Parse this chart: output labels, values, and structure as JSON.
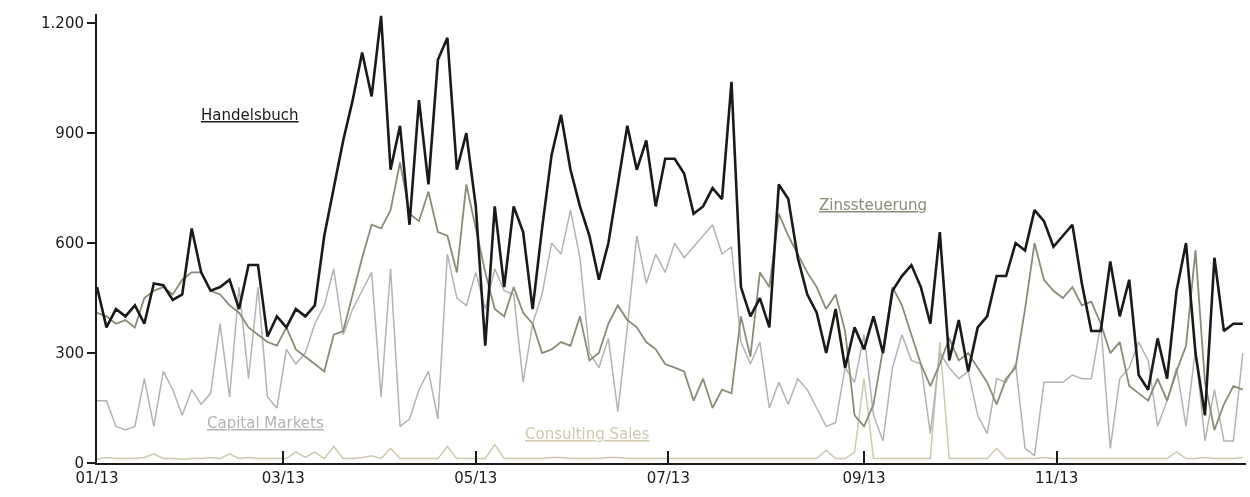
{
  "chart_data": {
    "type": "line",
    "x": [
      "2013-01-01",
      "2013-01-04",
      "2013-01-07",
      "2013-01-10",
      "2013-01-13",
      "2013-01-16",
      "2013-01-19",
      "2013-01-22",
      "2013-01-25",
      "2013-01-28",
      "2013-01-31",
      "2013-02-03",
      "2013-02-06",
      "2013-02-09",
      "2013-02-12",
      "2013-02-15",
      "2013-02-18",
      "2013-02-21",
      "2013-02-24",
      "2013-02-27",
      "2013-03-02",
      "2013-03-05",
      "2013-03-08",
      "2013-03-11",
      "2013-03-14",
      "2013-03-17",
      "2013-03-20",
      "2013-03-23",
      "2013-03-26",
      "2013-03-29",
      "2013-04-01",
      "2013-04-04",
      "2013-04-07",
      "2013-04-10",
      "2013-04-13",
      "2013-04-16",
      "2013-04-19",
      "2013-04-22",
      "2013-04-25",
      "2013-04-28",
      "2013-05-01",
      "2013-05-04",
      "2013-05-07",
      "2013-05-10",
      "2013-05-13",
      "2013-05-16",
      "2013-05-19",
      "2013-05-22",
      "2013-05-25",
      "2013-05-28",
      "2013-05-31",
      "2013-06-03",
      "2013-06-06",
      "2013-06-09",
      "2013-06-12",
      "2013-06-15",
      "2013-06-18",
      "2013-06-21",
      "2013-06-24",
      "2013-06-27",
      "2013-06-30",
      "2013-07-03",
      "2013-07-06",
      "2013-07-09",
      "2013-07-12",
      "2013-07-15",
      "2013-07-18",
      "2013-07-21",
      "2013-07-24",
      "2013-07-27",
      "2013-07-30",
      "2013-08-02",
      "2013-08-05",
      "2013-08-08",
      "2013-08-11",
      "2013-08-14",
      "2013-08-17",
      "2013-08-20",
      "2013-08-23",
      "2013-08-26",
      "2013-08-29",
      "2013-09-01",
      "2013-09-04",
      "2013-09-07",
      "2013-09-10",
      "2013-09-13",
      "2013-09-16",
      "2013-09-19",
      "2013-09-22",
      "2013-09-25",
      "2013-09-28",
      "2013-10-01",
      "2013-10-04",
      "2013-10-07",
      "2013-10-10",
      "2013-10-13",
      "2013-10-16",
      "2013-10-19",
      "2013-10-22",
      "2013-10-25",
      "2013-10-28",
      "2013-10-31",
      "2013-11-03",
      "2013-11-06",
      "2013-11-09",
      "2013-11-12",
      "2013-11-15",
      "2013-11-18",
      "2013-11-21",
      "2013-11-24",
      "2013-11-27",
      "2013-11-30",
      "2013-12-03",
      "2013-12-06",
      "2013-12-09",
      "2013-12-12",
      "2013-12-15",
      "2013-12-18",
      "2013-12-21",
      "2013-12-24",
      "2013-12-27",
      "2013-12-30"
    ],
    "series": [
      {
        "name": "Handelsbuch",
        "color": "#1a1a1a",
        "values": [
          480,
          370,
          420,
          400,
          430,
          380,
          490,
          485,
          445,
          460,
          640,
          520,
          470,
          480,
          500,
          420,
          540,
          540,
          345,
          400,
          370,
          420,
          400,
          430,
          620,
          750,
          880,
          990,
          1120,
          1000,
          1220,
          800,
          920,
          650,
          990,
          760,
          1100,
          1160,
          800,
          900,
          700,
          320,
          700,
          480,
          700,
          630,
          420,
          640,
          840,
          950,
          800,
          700,
          620,
          500,
          600,
          760,
          920,
          800,
          880,
          700,
          830,
          830,
          790,
          680,
          700,
          750,
          720,
          1040,
          480,
          400,
          450,
          370,
          760,
          720,
          560,
          460,
          410,
          300,
          420,
          260,
          370,
          310,
          400,
          300,
          470,
          510,
          540,
          480,
          380,
          630,
          280,
          390,
          250,
          370,
          400,
          510,
          510,
          600,
          580,
          690,
          660,
          590,
          620,
          650,
          490,
          360,
          360,
          550,
          400,
          500,
          240,
          200,
          340,
          230,
          470,
          600,
          300,
          130,
          560,
          360,
          380,
          380
        ]
      },
      {
        "name": "Zinssteuerung",
        "color": "#8c8b78",
        "values": [
          410,
          400,
          380,
          390,
          370,
          450,
          470,
          480,
          460,
          500,
          520,
          520,
          470,
          460,
          430,
          410,
          370,
          350,
          330,
          320,
          370,
          310,
          290,
          270,
          250,
          350,
          360,
          460,
          560,
          650,
          640,
          690,
          820,
          680,
          660,
          740,
          630,
          620,
          520,
          760,
          640,
          520,
          420,
          400,
          480,
          410,
          380,
          300,
          310,
          330,
          320,
          400,
          280,
          300,
          380,
          430,
          390,
          370,
          330,
          310,
          270,
          260,
          250,
          170,
          230,
          150,
          200,
          190,
          400,
          290,
          520,
          480,
          680,
          620,
          570,
          520,
          480,
          420,
          460,
          360,
          130,
          100,
          160,
          310,
          480,
          430,
          350,
          270,
          210,
          270,
          340,
          280,
          300,
          260,
          220,
          160,
          230,
          260,
          420,
          600,
          500,
          470,
          450,
          480,
          430,
          440,
          380,
          300,
          330,
          210,
          190,
          170,
          230,
          170,
          250,
          320,
          580,
          220,
          90,
          160,
          210,
          200
        ]
      },
      {
        "name": "Capital Markets",
        "color": "#b3b3b3",
        "values": [
          170,
          170,
          100,
          90,
          100,
          230,
          100,
          250,
          200,
          130,
          200,
          160,
          190,
          380,
          180,
          480,
          230,
          480,
          180,
          150,
          310,
          270,
          300,
          380,
          430,
          530,
          350,
          420,
          470,
          520,
          180,
          530,
          100,
          120,
          200,
          250,
          120,
          570,
          450,
          430,
          520,
          420,
          530,
          470,
          460,
          220,
          380,
          460,
          600,
          570,
          690,
          560,
          300,
          260,
          340,
          140,
          370,
          620,
          490,
          570,
          520,
          600,
          560,
          590,
          620,
          650,
          570,
          590,
          330,
          270,
          330,
          150,
          220,
          160,
          230,
          200,
          150,
          100,
          110,
          260,
          220,
          350,
          130,
          60,
          260,
          350,
          280,
          270,
          80,
          300,
          260,
          230,
          250,
          130,
          80,
          230,
          220,
          270,
          40,
          20,
          220,
          220,
          220,
          240,
          230,
          230,
          380,
          40,
          230,
          260,
          330,
          280,
          100,
          170,
          260,
          100,
          310,
          60,
          200,
          60,
          60,
          300
        ]
      },
      {
        "name": "Consulting Sales",
        "color": "#cfc8ad",
        "values": [
          10,
          15,
          12,
          12,
          12,
          15,
          25,
          12,
          12,
          10,
          12,
          12,
          15,
          12,
          25,
          12,
          15,
          12,
          12,
          12,
          12,
          30,
          15,
          30,
          12,
          45,
          12,
          12,
          15,
          20,
          12,
          40,
          12,
          12,
          12,
          12,
          12,
          45,
          12,
          12,
          12,
          12,
          50,
          12,
          12,
          12,
          12,
          12,
          15,
          15,
          12,
          12,
          12,
          12,
          15,
          15,
          12,
          12,
          12,
          12,
          12,
          12,
          12,
          12,
          12,
          12,
          12,
          12,
          12,
          12,
          12,
          12,
          12,
          12,
          12,
          12,
          12,
          35,
          12,
          12,
          30,
          230,
          12,
          12,
          12,
          12,
          12,
          12,
          12,
          330,
          12,
          12,
          12,
          12,
          12,
          40,
          12,
          12,
          12,
          12,
          15,
          12,
          12,
          12,
          12,
          12,
          12,
          12,
          12,
          12,
          12,
          12,
          12,
          12,
          30,
          12,
          12,
          15,
          12,
          12,
          12,
          15
        ]
      }
    ],
    "xlim": [
      "2013-01-01",
      "2013-12-31"
    ],
    "xticks": [
      {
        "value": "2013-01-01",
        "label": "01/13"
      },
      {
        "value": "2013-03-01",
        "label": "03/13"
      },
      {
        "value": "2013-05-01",
        "label": "05/13"
      },
      {
        "value": "2013-07-01",
        "label": "07/13"
      },
      {
        "value": "2013-09-01",
        "label": "09/13"
      },
      {
        "value": "2013-11-01",
        "label": "11/13"
      }
    ],
    "ylim": [
      0,
      1225
    ],
    "yticks": [
      0,
      300,
      600,
      900,
      {
        "value": 1200,
        "label": "1.200"
      }
    ],
    "legend": false,
    "marker": "none",
    "line_style": "solid"
  }
}
